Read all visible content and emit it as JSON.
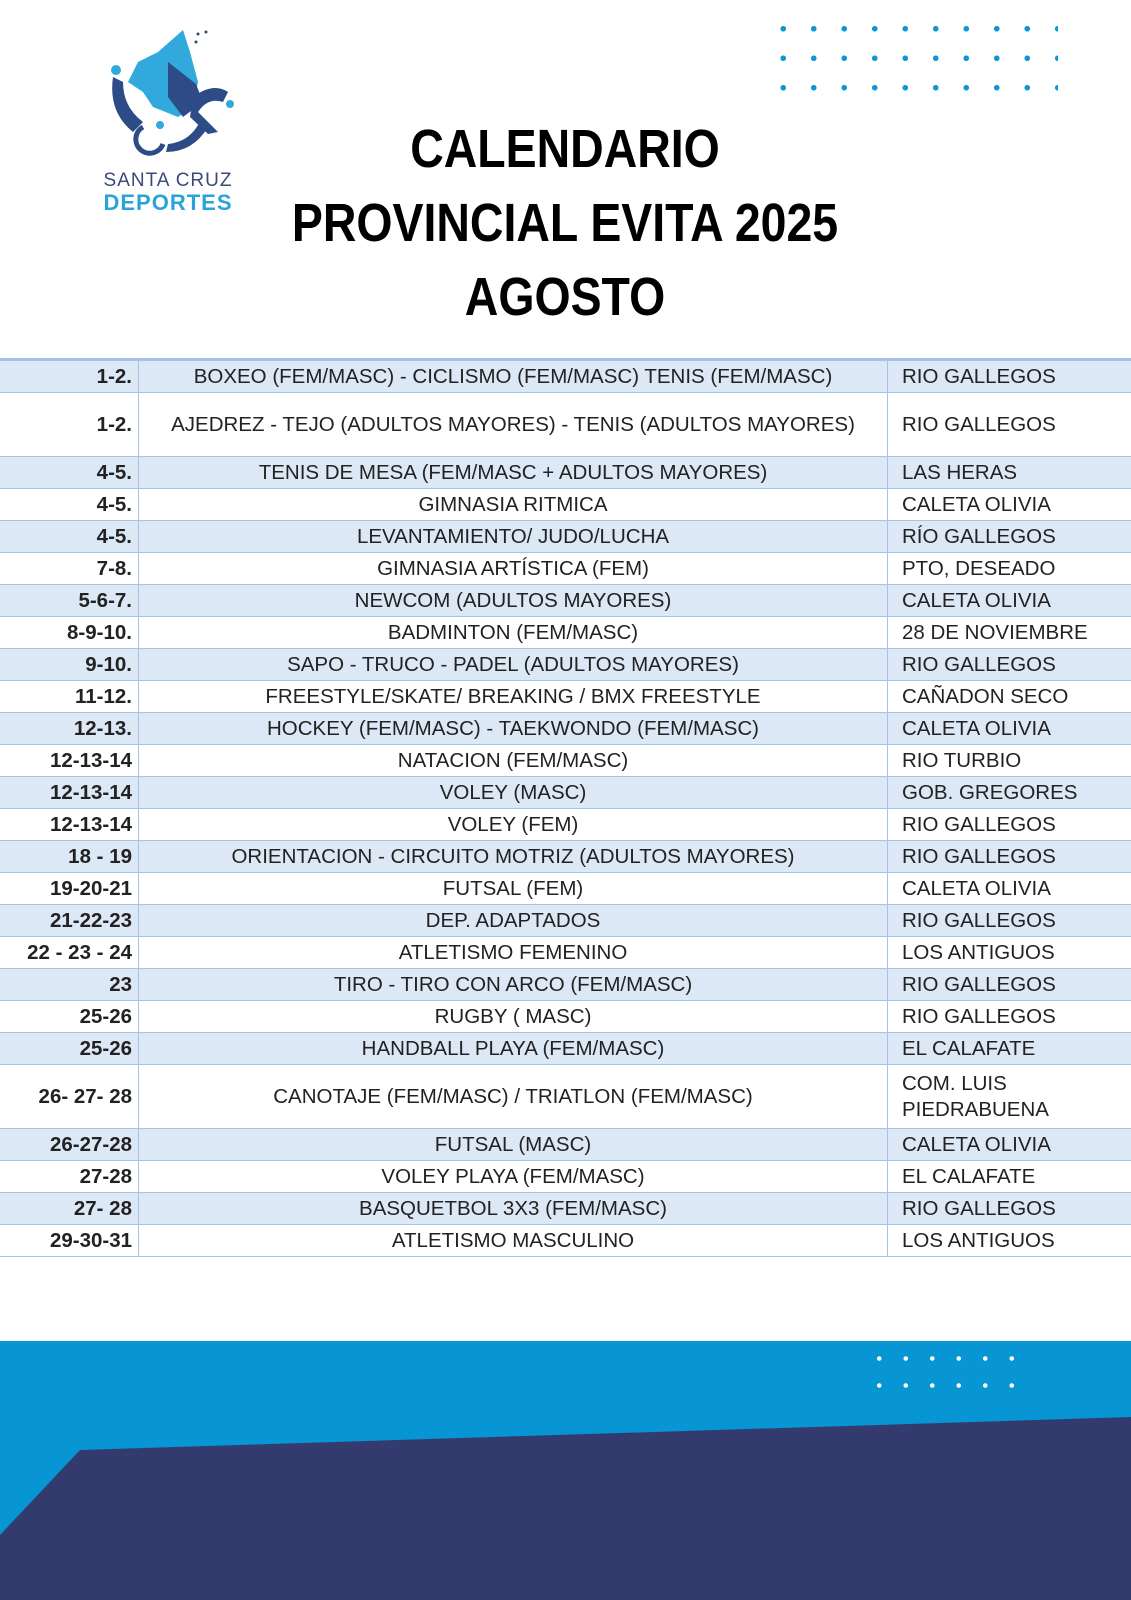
{
  "logo": {
    "line1": "SANTA CRUZ",
    "line2": "DEPORTES"
  },
  "title": {
    "line1": "CALENDARIO",
    "line2": "PROVINCIAL EVITA 2025",
    "line3": "AGOSTO"
  },
  "colors": {
    "accent": "#0795d3",
    "dark": "#333b6e",
    "row_alt": "#dce8f6",
    "border": "#a7c3e4"
  },
  "rows": [
    {
      "dates": "1-2.",
      "sport": "BOXEO (FEM/MASC) - CICLISMO (FEM/MASC) TENIS (FEM/MASC)",
      "location": "RIO GALLEGOS"
    },
    {
      "dates": "1-2.",
      "sport": "AJEDREZ - TEJO (ADULTOS MAYORES) - TENIS (ADULTOS MAYORES)",
      "location": "RIO GALLEGOS"
    },
    {
      "dates": "4-5.",
      "sport": "TENIS DE MESA (FEM/MASC + ADULTOS MAYORES)",
      "location": "LAS HERAS"
    },
    {
      "dates": "4-5.",
      "sport": "GIMNASIA RITMICA",
      "location": "CALETA OLIVIA"
    },
    {
      "dates": "4-5.",
      "sport": "LEVANTAMIENTO/ JUDO/LUCHA",
      "location": "RÍO GALLEGOS"
    },
    {
      "dates": "7-8.",
      "sport": "GIMNASIA ARTÍSTICA (FEM)",
      "location": "PTO, DESEADO"
    },
    {
      "dates": "5-6-7.",
      "sport": "NEWCOM (ADULTOS MAYORES)",
      "location": "CALETA OLIVIA"
    },
    {
      "dates": "8-9-10.",
      "sport": "BADMINTON (FEM/MASC)",
      "location": "28 DE NOVIEMBRE"
    },
    {
      "dates": "9-10.",
      "sport": "SAPO - TRUCO - PADEL (ADULTOS MAYORES)",
      "location": "RIO GALLEGOS"
    },
    {
      "dates": "11-12.",
      "sport": "FREESTYLE/SKATE/ BREAKING / BMX FREESTYLE",
      "location": "CAÑADON SECO"
    },
    {
      "dates": "12-13.",
      "sport": "HOCKEY (FEM/MASC) - TAEKWONDO (FEM/MASC)",
      "location": "CALETA OLIVIA"
    },
    {
      "dates": "12-13-14",
      "sport": "NATACION (FEM/MASC)",
      "location": "RIO TURBIO"
    },
    {
      "dates": "12-13-14",
      "sport": "VOLEY (MASC)",
      "location": "GOB. GREGORES"
    },
    {
      "dates": "12-13-14",
      "sport": "VOLEY (FEM)",
      "location": "RIO GALLEGOS"
    },
    {
      "dates": "18 - 19",
      "sport": "ORIENTACION - CIRCUITO MOTRIZ (ADULTOS MAYORES)",
      "location": "RIO GALLEGOS"
    },
    {
      "dates": "19-20-21",
      "sport": "FUTSAL (FEM)",
      "location": "CALETA OLIVIA"
    },
    {
      "dates": "21-22-23",
      "sport": "DEP. ADAPTADOS",
      "location": "RIO GALLEGOS"
    },
    {
      "dates": "22 - 23 - 24",
      "sport": "ATLETISMO FEMENINO",
      "location": "LOS ANTIGUOS"
    },
    {
      "dates": "23",
      "sport": "TIRO - TIRO CON ARCO (FEM/MASC)",
      "location": "RIO GALLEGOS"
    },
    {
      "dates": "25-26",
      "sport": "RUGBY ( MASC)",
      "location": "RIO GALLEGOS"
    },
    {
      "dates": "25-26",
      "sport": "HANDBALL PLAYA (FEM/MASC)",
      "location": "EL CALAFATE"
    },
    {
      "dates": "26- 27- 28",
      "sport": "CANOTAJE (FEM/MASC) / TRIATLON (FEM/MASC)",
      "location": "COM. LUIS PIEDRABUENA"
    },
    {
      "dates": "26-27-28",
      "sport": "FUTSAL (MASC)",
      "location": "CALETA OLIVIA"
    },
    {
      "dates": "27-28",
      "sport": "VOLEY PLAYA (FEM/MASC)",
      "location": "EL CALAFATE"
    },
    {
      "dates": "27- 28",
      "sport": "BASQUETBOL 3X3 (FEM/MASC)",
      "location": "RIO GALLEGOS"
    },
    {
      "dates": "29-30-31",
      "sport": "ATLETISMO MASCULINO",
      "location": "LOS ANTIGUOS"
    }
  ]
}
